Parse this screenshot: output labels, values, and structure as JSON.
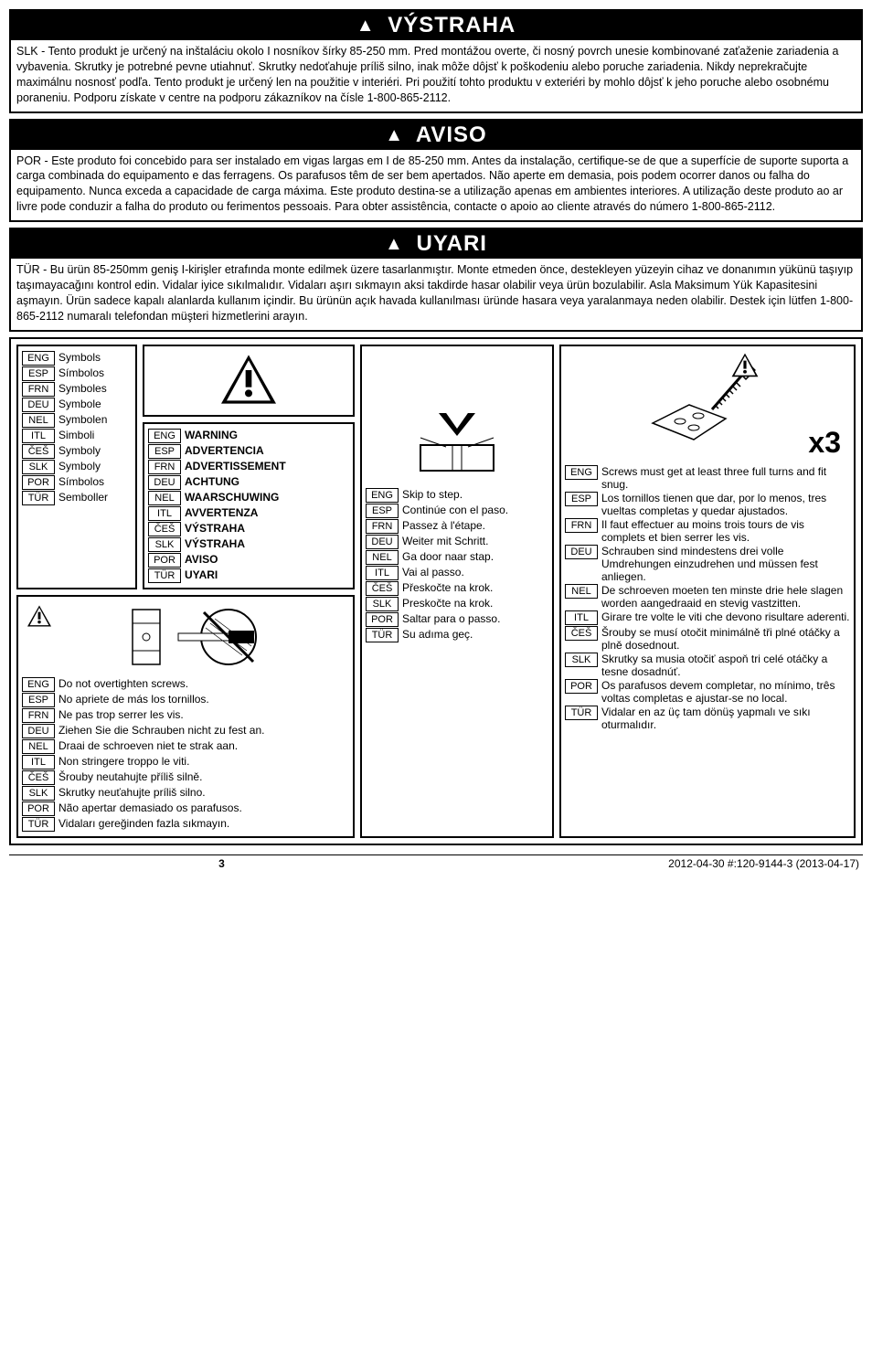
{
  "warnings": [
    {
      "header_icon": "▲",
      "header": "VÝSTRAHA",
      "body": "SLK - Tento produkt je určený na inštaláciu okolo I nosníkov šírky 85-250 mm. Pred montážou overte, či nosný povrch unesie kombinované zaťaženie zariadenia a vybavenia. Skrutky je potrebné pevne utiahnuť. Skrutky nedoťahuje príliš silno, inak môže dôjsť k poškodeniu alebo poruche zariadenia. Nikdy neprekračujte maximálnu nosnosť podľa. Tento produkt je určený len na použitie v interiéri. Pri použití tohto produktu v exteriéri by mohlo dôjsť k jeho poruche alebo osobnému poraneniu. Podporu získate v centre na podporu zákazníkov na čísle 1-800-865-2112."
    },
    {
      "header_icon": "▲",
      "header": "AVISO",
      "body": "POR - Este produto foi concebido para ser instalado em vigas largas em I de 85-250 mm. Antes da instalação, certifique-se de que a superfície de suporte suporta a carga combinada do equipamento e das ferragens. Os parafusos têm de ser bem apertados. Não aperte em demasia, pois podem ocorrer danos ou falha do equipamento. Nunca exceda a capacidade de carga máxima. Este produto destina-se a utilização apenas em ambientes interiores. A utilização deste produto ao ar livre pode conduzir a falha do produto ou ferimentos pessoais. Para obter assistência, contacte o apoio ao cliente através do número 1-800-865-2112."
    },
    {
      "header_icon": "▲",
      "header": "UYARI",
      "body": "TÜR - Bu ürün 85-250mm geniş I-kirişler etrafında monte edilmek üzere tasarlanmıştır. Monte etmeden önce, destekleyen yüzeyin cihaz ve donanımın yükünü taşıyıp taşımayacağını kontrol edin. Vidalar iyice sıkılmalıdır. Vidaları aşırı sıkmayın aksi takdirde hasar olabilir veya ürün bozulabilir. Asla Maksimum Yük Kapasitesini aşmayın. Ürün sadece kapalı alanlarda kullanım içindir. Bu ürünün açık havada kullanılması üründe hasara veya yaralanmaya neden olabilir. Destek için lütfen 1-800-865-2112 numaralı telefondan müşteri hizmetlerini arayın."
    }
  ],
  "symbols": [
    {
      "tag": "ENG",
      "txt": "Symbols"
    },
    {
      "tag": "ESP",
      "txt": "Símbolos"
    },
    {
      "tag": "FRN",
      "txt": "Symboles"
    },
    {
      "tag": "DEU",
      "txt": "Symbole"
    },
    {
      "tag": "NEL",
      "txt": "Symbolen"
    },
    {
      "tag": "ITL",
      "txt": "Simboli"
    },
    {
      "tag": "ČEŠ",
      "txt": "Symboly"
    },
    {
      "tag": "SLK",
      "txt": "Symboly"
    },
    {
      "tag": "POR",
      "txt": "Símbolos"
    },
    {
      "tag": "TÜR",
      "txt": "Semboller"
    }
  ],
  "warn_labels": [
    {
      "tag": "ENG",
      "txt": "WARNING"
    },
    {
      "tag": "ESP",
      "txt": "ADVERTENCIA"
    },
    {
      "tag": "FRN",
      "txt": "ADVERTISSEMENT"
    },
    {
      "tag": "DEU",
      "txt": "ACHTUNG"
    },
    {
      "tag": "NEL",
      "txt": "WAARSCHUWING"
    },
    {
      "tag": "ITL",
      "txt": "AVVERTENZA"
    },
    {
      "tag": "ČEŠ",
      "txt": "VÝSTRAHA"
    },
    {
      "tag": "SLK",
      "txt": "VÝSTRAHA"
    },
    {
      "tag": "POR",
      "txt": "AVISO"
    },
    {
      "tag": "TÜR",
      "txt": "UYARI"
    }
  ],
  "skip_step": [
    {
      "tag": "ENG",
      "txt": "Skip to step."
    },
    {
      "tag": "ESP",
      "txt": "Continúe con el paso."
    },
    {
      "tag": "FRN",
      "txt": "Passez à l'étape."
    },
    {
      "tag": "DEU",
      "txt": "Weiter mit Schritt."
    },
    {
      "tag": "NEL",
      "txt": "Ga door naar stap."
    },
    {
      "tag": "ITL",
      "txt": "Vai al passo."
    },
    {
      "tag": "ČEŠ",
      "txt": "Přeskočte na krok."
    },
    {
      "tag": "SLK",
      "txt": "Preskočte na krok."
    },
    {
      "tag": "POR",
      "txt": "Saltar para o passo."
    },
    {
      "tag": "TÜR",
      "txt": "Su adıma geç."
    }
  ],
  "overtighten": [
    {
      "tag": "ENG",
      "txt": "Do not overtighten screws."
    },
    {
      "tag": "ESP",
      "txt": "No apriete de más los tornillos."
    },
    {
      "tag": "FRN",
      "txt": "Ne pas trop serrer les vis."
    },
    {
      "tag": "DEU",
      "txt": "Ziehen Sie die Schrauben nicht zu fest an."
    },
    {
      "tag": "NEL",
      "txt": "Draai de schroeven niet te strak aan."
    },
    {
      "tag": "ITL",
      "txt": "Non stringere troppo le viti."
    },
    {
      "tag": "ČEŠ",
      "txt": "Šrouby neutahujte příliš silně."
    },
    {
      "tag": "SLK",
      "txt": "Skrutky neuťahujte príliš silno."
    },
    {
      "tag": "POR",
      "txt": "Não apertar demasiado os parafusos."
    },
    {
      "tag": "TÜR",
      "txt": "Vidaları gereğinden fazla sıkmayın."
    }
  ],
  "x3_label": "x3",
  "screw_turns": [
    {
      "tag": "ENG",
      "txt": "Screws must get at least three full turns and fit snug."
    },
    {
      "tag": "ESP",
      "txt": "Los tornillos tienen que dar, por lo menos, tres vueltas completas y quedar ajustados."
    },
    {
      "tag": "FRN",
      "txt": "Il faut effectuer au moins trois tours de vis complets et bien serrer les vis."
    },
    {
      "tag": "DEU",
      "txt": "Schrauben sind mindestens drei volle Umdrehungen einzudrehen und müssen fest anliegen."
    },
    {
      "tag": "NEL",
      "txt": "De schroeven moeten ten minste drie hele slagen worden aangedraaid en stevig vastzitten."
    },
    {
      "tag": "ITL",
      "txt": "Girare tre volte le viti che devono risultare aderenti."
    },
    {
      "tag": "ČEŠ",
      "txt": "Šrouby se musí otočit minimálně tři plné otáčky a plně dosednout."
    },
    {
      "tag": "SLK",
      "txt": "Skrutky sa musia otočiť aspoň tri celé otáčky a tesne dosadnúť."
    },
    {
      "tag": "POR",
      "txt": "Os parafusos devem completar, no mínimo, três voltas completas e ajustar-se no local."
    },
    {
      "tag": "TÜR",
      "txt": "Vidalar en az üç tam dönüş yapmalı ve sıkı oturmalıdır."
    }
  ],
  "footer": {
    "page": "3",
    "meta": "2012-04-30   #:120-9144-3   (2013-04-17)"
  },
  "colors": {
    "black": "#000000",
    "white": "#ffffff"
  }
}
